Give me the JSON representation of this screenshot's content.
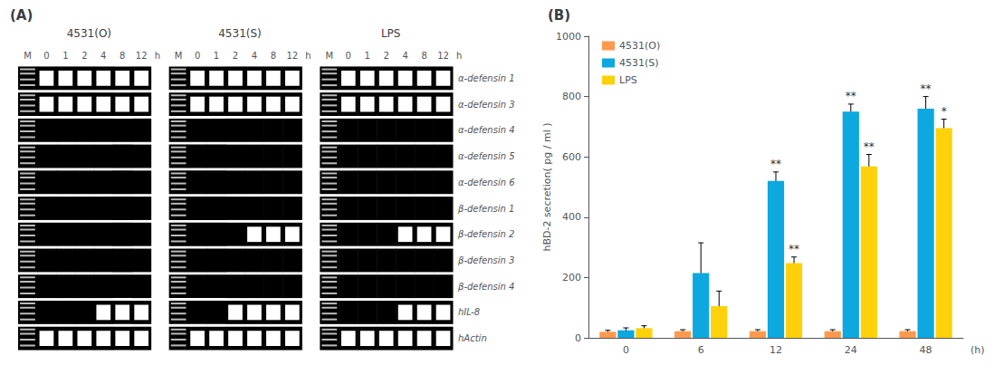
{
  "chart_data": [
    {
      "type": "heatmap",
      "title": "(A)",
      "groups": [
        "4531(O)",
        "4531(S)",
        "LPS"
      ],
      "marker_label": "M",
      "categories": [
        "0",
        "1",
        "2",
        "4",
        "8",
        "12"
      ],
      "xlabel": "h",
      "rows": [
        "α-defensin 1",
        "α-defensin 3",
        "α-defensin 4",
        "α-defensin 5",
        "α-defensin 6",
        "β-defensin 1",
        "β-defensin 2",
        "β-defensin 3",
        "β-defensin 4",
        "hIL-8",
        "hActin"
      ],
      "cells": [
        [
          [
            1,
            1,
            1,
            1,
            1,
            1
          ],
          [
            1,
            1,
            1,
            1,
            1,
            1
          ],
          [
            1,
            1,
            1,
            1,
            1,
            1
          ]
        ],
        [
          [
            1,
            1,
            1,
            1,
            1,
            1
          ],
          [
            1,
            1,
            1,
            1,
            1,
            1
          ],
          [
            1,
            1,
            1,
            1,
            1,
            1
          ]
        ],
        [
          [
            0,
            0,
            0,
            0,
            0,
            0
          ],
          [
            0,
            0,
            0,
            0,
            0,
            0
          ],
          [
            0,
            0,
            0,
            0,
            0,
            0
          ]
        ],
        [
          [
            0,
            0,
            0,
            0,
            0,
            0
          ],
          [
            0,
            0,
            0,
            0,
            0,
            0
          ],
          [
            0,
            0,
            0,
            0,
            0,
            0
          ]
        ],
        [
          [
            0,
            0,
            0,
            0,
            0,
            0
          ],
          [
            0,
            0,
            0,
            0,
            0,
            0
          ],
          [
            0,
            0,
            0,
            0,
            0,
            0
          ]
        ],
        [
          [
            0,
            0,
            0,
            0,
            0,
            0
          ],
          [
            0,
            0,
            0,
            0,
            0,
            0
          ],
          [
            0,
            0,
            0,
            0,
            0,
            0
          ]
        ],
        [
          [
            0,
            0,
            0,
            0,
            0,
            0
          ],
          [
            0,
            0,
            0,
            1,
            1,
            1
          ],
          [
            0,
            0,
            0,
            1,
            1,
            1
          ]
        ],
        [
          [
            0,
            0,
            0,
            0,
            0,
            0
          ],
          [
            0,
            0,
            0,
            0,
            0,
            0
          ],
          [
            0,
            0,
            0,
            0,
            0,
            0
          ]
        ],
        [
          [
            0,
            0,
            0,
            0,
            0,
            0
          ],
          [
            0,
            0,
            0,
            0,
            0,
            0
          ],
          [
            0,
            0,
            0,
            0,
            0,
            0
          ]
        ],
        [
          [
            0,
            0,
            0,
            1,
            1,
            1
          ],
          [
            0,
            0,
            1,
            1,
            1,
            1
          ],
          [
            0,
            0,
            0,
            1,
            1,
            1
          ]
        ],
        [
          [
            1,
            1,
            1,
            1,
            1,
            1
          ],
          [
            1,
            1,
            1,
            1,
            1,
            1
          ],
          [
            1,
            1,
            1,
            1,
            1,
            1
          ]
        ]
      ]
    },
    {
      "type": "bar",
      "title": "(B)",
      "categories": [
        "0",
        "6",
        "12",
        "24",
        "48"
      ],
      "xlabel": "(h)",
      "ylabel": "hBD-2 secretion( pg / ml )",
      "ylim": [
        0,
        1000
      ],
      "yticks": [
        0,
        200,
        400,
        600,
        800,
        1000
      ],
      "series": [
        {
          "name": "4531(O)",
          "values": [
            20,
            22,
            22,
            22,
            22
          ],
          "errors": [
            5,
            5,
            5,
            5,
            5
          ]
        },
        {
          "name": "4531(S)",
          "values": [
            25,
            215,
            520,
            750,
            760
          ],
          "errors": [
            8,
            100,
            30,
            25,
            40
          ]
        },
        {
          "name": "LPS",
          "values": [
            32,
            105,
            248,
            568,
            695
          ],
          "errors": [
            8,
            50,
            20,
            40,
            30
          ]
        }
      ],
      "annotations": [
        {
          "category": "12",
          "series": "4531(S)",
          "text": "**"
        },
        {
          "category": "12",
          "series": "LPS",
          "text": "**"
        },
        {
          "category": "24",
          "series": "4531(S)",
          "text": "**"
        },
        {
          "category": "24",
          "series": "LPS",
          "text": "**"
        },
        {
          "category": "48",
          "series": "4531(S)",
          "text": "**"
        },
        {
          "category": "48",
          "series": "LPS",
          "text": "*"
        }
      ],
      "legend": "upper left",
      "grid": false
    }
  ]
}
